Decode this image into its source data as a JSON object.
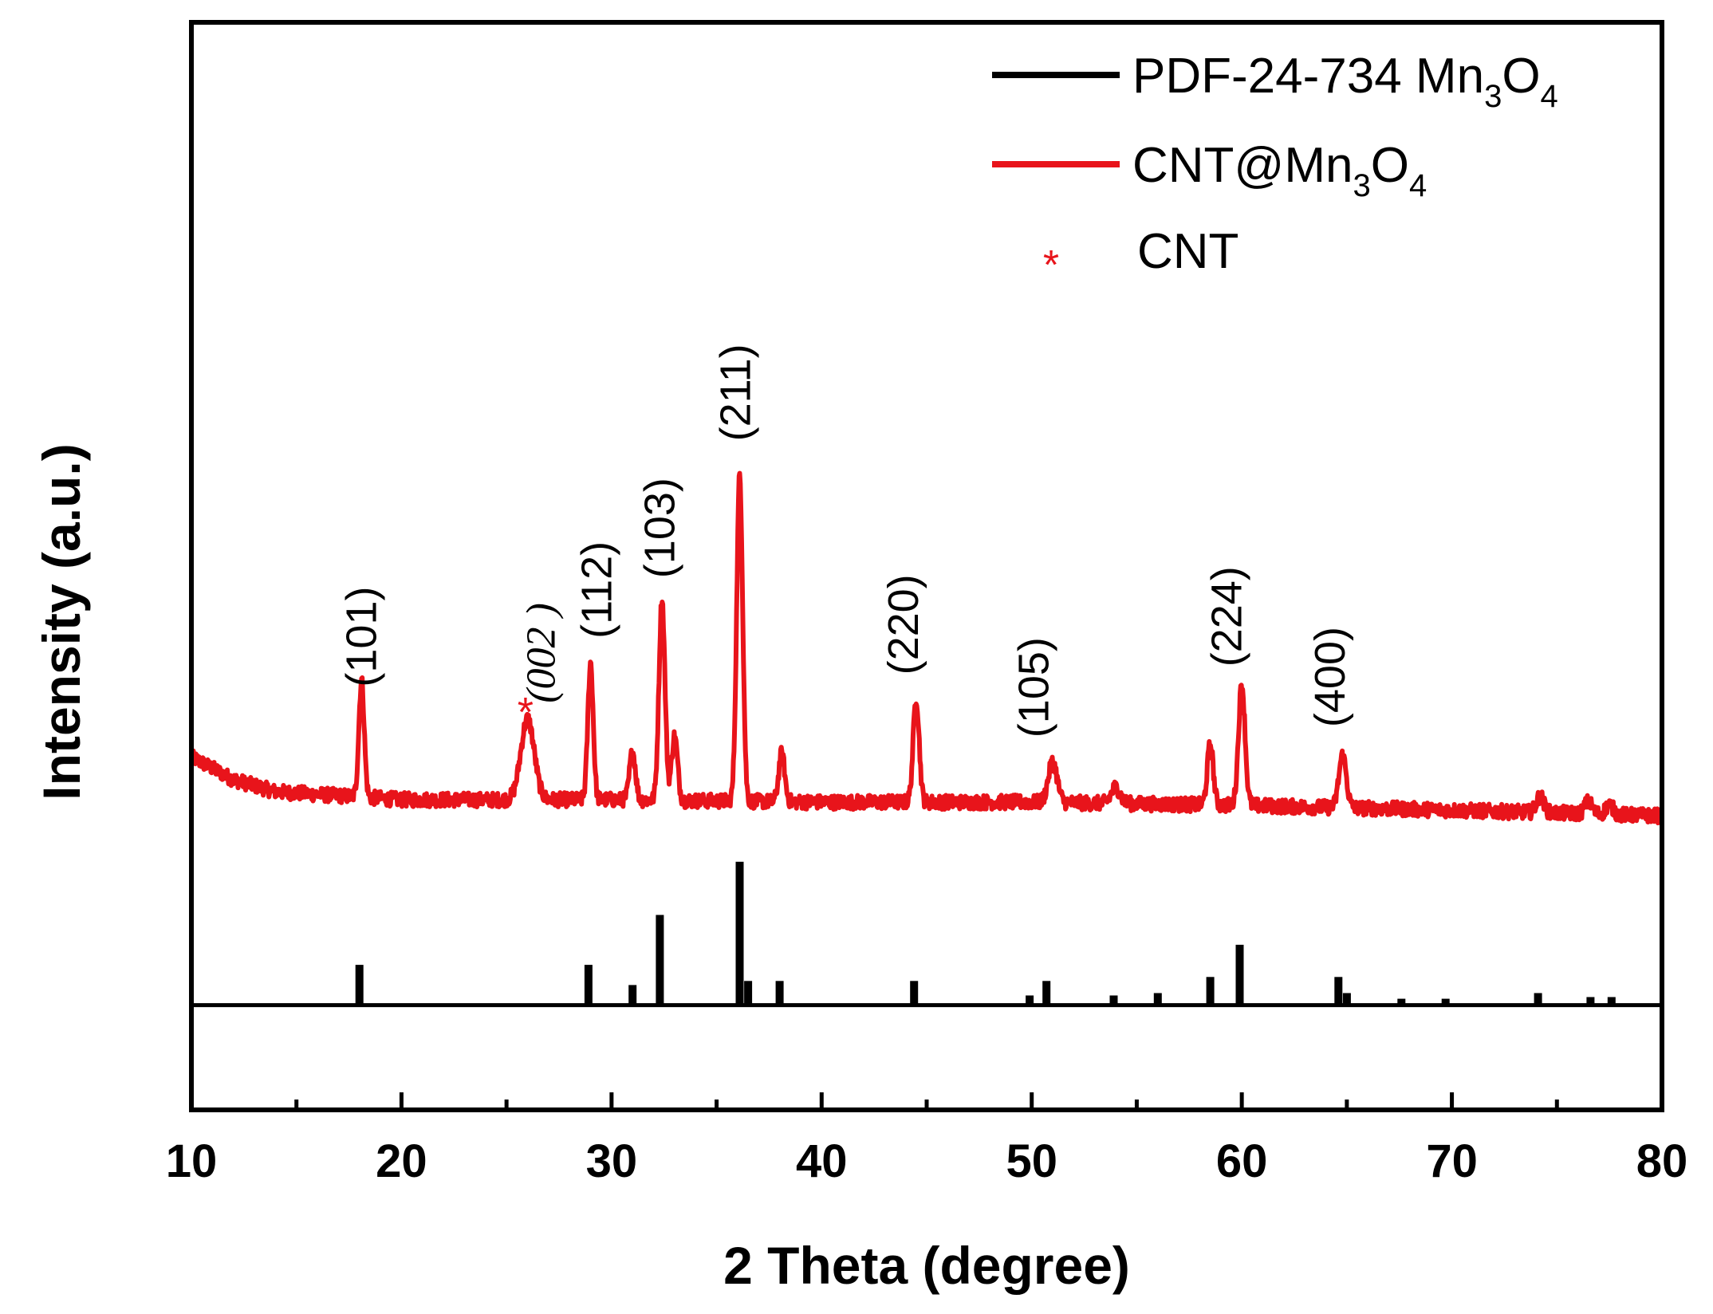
{
  "chart_data": {
    "type": "line",
    "xlabel": "2 Theta (degree)",
    "ylabel": "Intensity (a.u.)",
    "xlim": [
      10,
      80
    ],
    "ylim": [
      -0.35,
      1.0
    ],
    "x_ticks": [
      "10",
      "20",
      "30",
      "40",
      "50",
      "60",
      "70",
      "80"
    ],
    "x_tick_values": [
      10,
      20,
      30,
      40,
      50,
      60,
      70,
      80
    ],
    "legend": [
      {
        "id": "pdf",
        "text": "PDF-24-734 Mn",
        "sub1": "3",
        "mid": "O",
        "sub2": "4",
        "color": "#000000",
        "marker": "line"
      },
      {
        "id": "cnt",
        "text": "CNT@Mn",
        "sub1": "3",
        "mid": "O",
        "sub2": "4",
        "color": "#e8141b",
        "marker": "line"
      },
      {
        "id": "star",
        "text": "CNT",
        "symbol": "*",
        "color": "#e8141b",
        "marker": "star"
      }
    ],
    "series": [
      {
        "name": "CNT@Mn3O4",
        "color": "#e8141b",
        "baseline": [
          [
            10,
            0.088
          ],
          [
            12,
            0.06
          ],
          [
            14,
            0.045
          ],
          [
            20,
            0.035
          ],
          [
            30,
            0.035
          ],
          [
            40,
            0.032
          ],
          [
            50,
            0.032
          ],
          [
            60,
            0.028
          ],
          [
            70,
            0.022
          ],
          [
            80,
            0.015
          ]
        ],
        "peaks": [
          {
            "x": 18.1,
            "h": 0.145,
            "w": 0.18
          },
          {
            "x": 26.0,
            "h": 0.1,
            "w": 0.45
          },
          {
            "x": 29.0,
            "h": 0.17,
            "w": 0.18
          },
          {
            "x": 31.0,
            "h": 0.06,
            "w": 0.2
          },
          {
            "x": 32.4,
            "h": 0.25,
            "w": 0.2
          },
          {
            "x": 33.0,
            "h": 0.08,
            "w": 0.2
          },
          {
            "x": 36.1,
            "h": 0.405,
            "w": 0.2
          },
          {
            "x": 38.1,
            "h": 0.06,
            "w": 0.2
          },
          {
            "x": 44.5,
            "h": 0.13,
            "w": 0.2
          },
          {
            "x": 51.0,
            "h": 0.05,
            "w": 0.3
          },
          {
            "x": 54.0,
            "h": 0.02,
            "w": 0.3
          },
          {
            "x": 58.5,
            "h": 0.075,
            "w": 0.2
          },
          {
            "x": 60.0,
            "h": 0.15,
            "w": 0.22
          },
          {
            "x": 64.8,
            "h": 0.065,
            "w": 0.25
          },
          {
            "x": 74.2,
            "h": 0.02,
            "w": 0.25
          },
          {
            "x": 76.5,
            "h": 0.015,
            "w": 0.25
          },
          {
            "x": 77.5,
            "h": 0.012,
            "w": 0.25
          }
        ]
      },
      {
        "name": "PDF-24-734 Mn3O4",
        "color": "#000000",
        "baseline_y": -0.22,
        "sticks": [
          [
            18.0,
            0.05
          ],
          [
            28.9,
            0.05
          ],
          [
            31.0,
            0.025
          ],
          [
            32.3,
            0.112
          ],
          [
            36.1,
            0.178
          ],
          [
            36.5,
            0.03
          ],
          [
            38.0,
            0.03
          ],
          [
            44.4,
            0.03
          ],
          [
            49.9,
            0.012
          ],
          [
            50.7,
            0.03
          ],
          [
            53.9,
            0.012
          ],
          [
            56.0,
            0.015
          ],
          [
            58.5,
            0.035
          ],
          [
            59.9,
            0.075
          ],
          [
            64.6,
            0.035
          ],
          [
            65.0,
            0.015
          ],
          [
            67.6,
            0.008
          ],
          [
            69.7,
            0.008
          ],
          [
            74.1,
            0.015
          ],
          [
            76.6,
            0.01
          ],
          [
            77.6,
            0.01
          ]
        ]
      }
    ],
    "reference_line_y": -0.22,
    "annotations": [
      {
        "text": "(101)",
        "x": 18.1,
        "y": 0.175,
        "style": "normal"
      },
      {
        "text": "(002 )",
        "x": 26.6,
        "y": 0.155,
        "style": "italic",
        "star": true,
        "star_x": 25.9,
        "star_y": 0.14
      },
      {
        "text": "(112)",
        "x": 29.3,
        "y": 0.235,
        "style": "normal"
      },
      {
        "text": "(103)",
        "x": 32.3,
        "y": 0.31,
        "style": "normal"
      },
      {
        "text": "(211)",
        "x": 35.9,
        "y": 0.48,
        "style": "normal"
      },
      {
        "text": "(220)",
        "x": 43.9,
        "y": 0.19,
        "style": "normal"
      },
      {
        "text": "(105)",
        "x": 50.1,
        "y": 0.112,
        "style": "normal"
      },
      {
        "text": "(224)",
        "x": 59.3,
        "y": 0.2,
        "style": "normal"
      },
      {
        "text": "(400)",
        "x": 64.2,
        "y": 0.125,
        "style": "normal"
      }
    ]
  }
}
